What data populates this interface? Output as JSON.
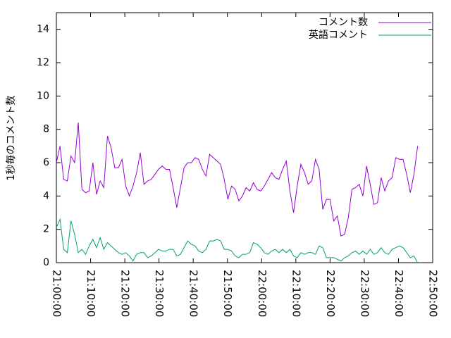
{
  "chart_data": {
    "type": "line",
    "ylabel": "1秒毎のコメント数",
    "x": [
      "21:00:00",
      "21:01:04",
      "21:02:08",
      "21:03:12",
      "21:04:16",
      "21:05:20",
      "21:06:24",
      "21:07:28",
      "21:08:32",
      "21:09:36",
      "21:10:40",
      "21:11:44",
      "21:12:48",
      "21:13:52",
      "21:14:56",
      "21:16:00",
      "21:17:04",
      "21:18:08",
      "21:19:12",
      "21:20:16",
      "21:21:20",
      "21:22:24",
      "21:23:28",
      "21:24:32",
      "21:25:36",
      "21:26:40",
      "21:27:44",
      "21:28:48",
      "21:29:52",
      "21:30:56",
      "21:32:00",
      "21:33:04",
      "21:34:08",
      "21:35:12",
      "21:36:16",
      "21:37:20",
      "21:38:24",
      "21:39:28",
      "21:40:32",
      "21:41:36",
      "21:42:40",
      "21:43:44",
      "21:44:48",
      "21:45:52",
      "21:46:56",
      "21:48:00",
      "21:49:04",
      "21:50:08",
      "21:51:12",
      "21:52:16",
      "21:53:20",
      "21:54:24",
      "21:55:28",
      "21:56:32",
      "21:57:36",
      "21:58:40",
      "21:59:44",
      "22:00:48",
      "22:01:52",
      "22:02:56",
      "22:04:00",
      "22:05:04",
      "22:06:08",
      "22:07:12",
      "22:08:16",
      "22:09:20",
      "22:10:24",
      "22:11:28",
      "22:12:32",
      "22:13:36",
      "22:14:40",
      "22:15:44",
      "22:16:48",
      "22:17:52",
      "22:18:56",
      "22:20:00",
      "22:21:04",
      "22:22:08",
      "22:23:12",
      "22:24:16",
      "22:25:20",
      "22:26:24",
      "22:27:28",
      "22:28:32",
      "22:29:36",
      "22:30:40",
      "22:31:44",
      "22:32:48",
      "22:33:52",
      "22:34:56",
      "22:36:00",
      "22:37:04",
      "22:38:08",
      "22:39:12",
      "22:40:16",
      "22:41:20",
      "22:42:24",
      "22:43:28",
      "22:44:32",
      "22:45:36"
    ],
    "series": [
      {
        "name": "コメント数",
        "color": "#9400d3",
        "values": [
          6.0,
          7.0,
          5.0,
          4.9,
          6.4,
          6.0,
          8.4,
          4.4,
          4.2,
          4.3,
          6.0,
          4.1,
          4.9,
          4.5,
          7.6,
          6.9,
          5.7,
          5.7,
          6.2,
          4.6,
          4.0,
          4.6,
          5.4,
          6.6,
          4.7,
          4.9,
          5.0,
          5.3,
          5.6,
          5.8,
          5.6,
          5.6,
          4.5,
          3.3,
          4.5,
          5.7,
          6.0,
          6.0,
          6.3,
          6.2,
          5.6,
          5.2,
          6.5,
          6.3,
          6.1,
          5.9,
          5.0,
          3.8,
          4.6,
          4.4,
          3.7,
          4.0,
          4.5,
          4.3,
          4.8,
          4.4,
          4.3,
          4.6,
          5.0,
          5.4,
          5.1,
          5.0,
          5.6,
          6.1,
          4.3,
          3.0,
          4.6,
          5.9,
          5.4,
          4.7,
          4.9,
          6.2,
          5.6,
          3.2,
          3.8,
          3.8,
          2.5,
          2.8,
          1.6,
          1.7,
          2.7,
          4.4,
          4.5,
          4.7,
          4.0,
          5.8,
          4.7,
          3.5,
          3.6,
          5.1,
          4.3,
          4.9,
          5.1,
          6.3,
          6.2,
          6.2,
          5.3,
          4.2,
          5.3,
          7.0
        ]
      },
      {
        "name": "英語コメント",
        "color": "#009e73",
        "values": [
          2.1,
          2.6,
          0.8,
          0.6,
          2.5,
          1.7,
          0.6,
          0.8,
          0.5,
          1.0,
          1.4,
          0.9,
          1.5,
          0.8,
          1.2,
          1.0,
          0.8,
          0.6,
          0.5,
          0.6,
          0.4,
          0.1,
          0.5,
          0.6,
          0.6,
          0.3,
          0.4,
          0.6,
          0.8,
          0.7,
          0.7,
          0.8,
          0.8,
          0.4,
          0.5,
          0.9,
          1.3,
          1.1,
          1.0,
          0.7,
          0.6,
          0.8,
          1.3,
          1.3,
          1.4,
          1.3,
          0.8,
          0.8,
          0.7,
          0.4,
          0.3,
          0.5,
          0.5,
          0.6,
          1.2,
          1.1,
          0.9,
          0.6,
          0.5,
          0.7,
          0.8,
          0.6,
          0.8,
          0.6,
          0.8,
          0.4,
          0.3,
          0.6,
          0.5,
          0.6,
          0.6,
          0.5,
          1.0,
          0.9,
          0.3,
          0.3,
          0.3,
          0.2,
          0.1,
          0.3,
          0.4,
          0.6,
          0.7,
          0.5,
          0.7,
          0.5,
          0.8,
          0.5,
          0.6,
          0.9,
          0.6,
          0.5,
          0.8,
          0.9,
          1.0,
          0.9,
          0.6,
          0.3,
          0.4,
          0.0
        ]
      }
    ],
    "xlim": [
      "21:00:00",
      "22:50:00"
    ],
    "xticks": [
      "21:00:00",
      "21:10:00",
      "21:20:00",
      "21:30:00",
      "21:40:00",
      "21:50:00",
      "22:00:00",
      "22:10:00",
      "22:20:00",
      "22:30:00",
      "22:40:00",
      "22:50:00"
    ],
    "ylim": [
      0,
      15
    ],
    "yticks": [
      0,
      2,
      4,
      6,
      8,
      10,
      12,
      14
    ],
    "legend": "top-right"
  }
}
